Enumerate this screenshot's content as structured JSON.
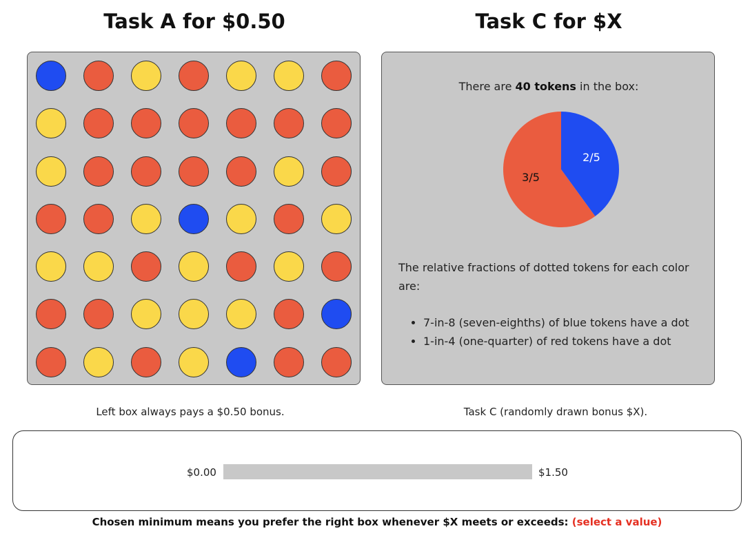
{
  "task_a": {
    "title": "Task A for $0.50",
    "caption": "Left box always pays a $0.50 bonus.",
    "grid": [
      [
        "blue",
        "red",
        "yellow",
        "red",
        "yellow",
        "yellow",
        "red"
      ],
      [
        "yellow",
        "red",
        "red",
        "red",
        "red",
        "red",
        "red"
      ],
      [
        "yellow",
        "red",
        "red",
        "red",
        "red",
        "yellow",
        "red"
      ],
      [
        "red",
        "red",
        "yellow",
        "blue",
        "yellow",
        "red",
        "yellow"
      ],
      [
        "yellow",
        "yellow",
        "red",
        "yellow",
        "red",
        "yellow",
        "red"
      ],
      [
        "red",
        "red",
        "yellow",
        "yellow",
        "yellow",
        "red",
        "blue"
      ],
      [
        "red",
        "yellow",
        "red",
        "yellow",
        "blue",
        "red",
        "red"
      ]
    ]
  },
  "task_c": {
    "title": "Task C for $X",
    "caption": "Task C (randomly drawn bonus $X).",
    "token_text_prefix": "There are ",
    "token_count_bold": "40 tokens",
    "token_text_suffix": " in the box:",
    "fractions_intro": "The relative fractions of dotted tokens for each color are:",
    "fractions": [
      "7-in-8 (seven-eighths) of blue tokens have a dot",
      "1-in-4 (one-quarter) of red tokens have a dot"
    ]
  },
  "chart_data": {
    "type": "pie",
    "slices": [
      {
        "label": "2/5",
        "value": 0.4,
        "color": "#1f4cf1",
        "text_color": "#ffffff"
      },
      {
        "label": "3/5",
        "value": 0.6,
        "color": "#ea5c3f",
        "text_color": "#111111"
      }
    ]
  },
  "slider": {
    "min_label": "$0.00",
    "max_label": "$1.50",
    "min": 0,
    "max": 1.5
  },
  "summary": {
    "text": "Chosen minimum means you prefer the right box whenever $X meets or exceeds: ",
    "value_text": "(select a value)"
  },
  "colors": {
    "blue": "#1f4cf1",
    "red": "#ea5c3f",
    "yellow": "#fad84a",
    "panel_gray": "#c8c8c8",
    "alert_red": "#e53022"
  }
}
